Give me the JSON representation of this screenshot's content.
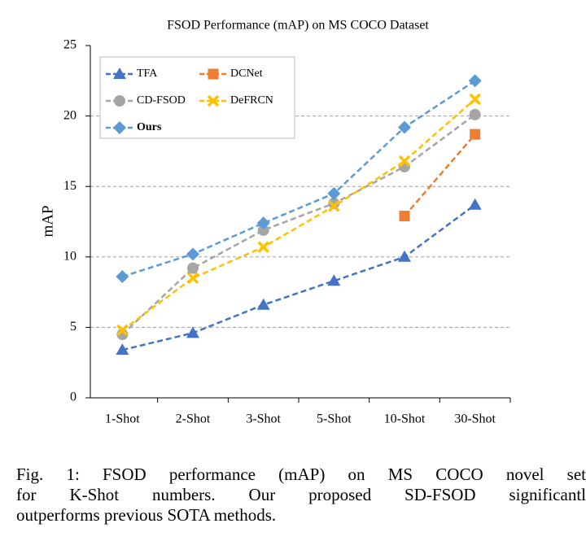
{
  "chart_data": {
    "type": "line",
    "title": "FSOD Performance (mAP) on MS COCO Dataset",
    "y_label": "mAP",
    "categories": [
      "1-Shot",
      "2-Shot",
      "3-Shot",
      "5-Shot",
      "10-Shot",
      "30-Shot"
    ],
    "series": [
      {
        "name": "TFA",
        "color": "#4472c4",
        "marker": "triangle",
        "values": [
          3.4,
          4.6,
          6.6,
          8.3,
          10.0,
          13.7
        ]
      },
      {
        "name": "DCNet",
        "color": "#ed7d31",
        "marker": "square",
        "values": [
          null,
          null,
          null,
          null,
          12.9,
          18.7
        ]
      },
      {
        "name": "CD-FSOD",
        "color": "#a5a5a5",
        "marker": "circle",
        "values": [
          4.5,
          9.2,
          11.9,
          13.8,
          16.4,
          20.1
        ]
      },
      {
        "name": "DeFRCN",
        "color": "#ffc000",
        "marker": "x",
        "values": [
          4.8,
          8.5,
          10.7,
          13.6,
          16.8,
          21.2
        ]
      },
      {
        "name": "Ours",
        "color": "#5b9bd5",
        "marker": "diamond",
        "values": [
          8.6,
          10.2,
          12.4,
          14.5,
          19.2,
          22.5
        ]
      }
    ],
    "ylim": [
      0,
      25
    ],
    "yticks": [
      0,
      5,
      10,
      15,
      20,
      25
    ],
    "grid": true,
    "legend": "upper left",
    "caption": [
      "Fig. 1: FSOD performance (mAP) on MS COCO novel set",
      "for K-Shot numbers. Our proposed SD-FSOD significantl",
      "outperforms previous SOTA methods."
    ]
  }
}
